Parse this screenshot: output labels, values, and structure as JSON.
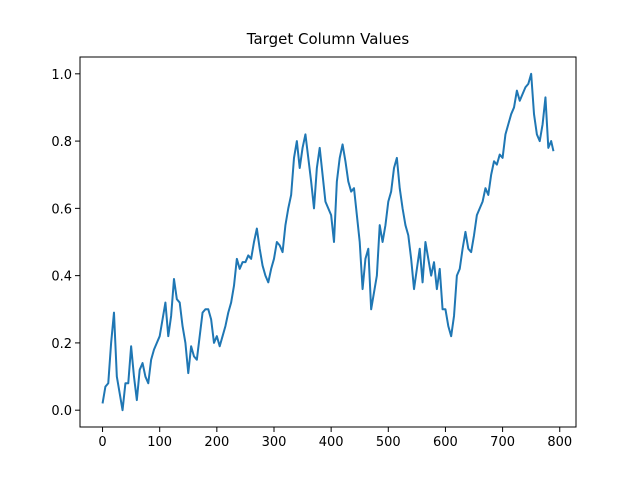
{
  "chart_data": {
    "type": "line",
    "title": "Target Column Values",
    "x": [
      0,
      5,
      10,
      15,
      20,
      25,
      30,
      35,
      40,
      45,
      50,
      55,
      60,
      65,
      70,
      75,
      80,
      85,
      90,
      95,
      100,
      105,
      110,
      115,
      120,
      125,
      130,
      135,
      140,
      145,
      150,
      155,
      160,
      165,
      170,
      175,
      180,
      185,
      190,
      195,
      200,
      205,
      210,
      215,
      220,
      225,
      230,
      235,
      240,
      245,
      250,
      255,
      260,
      265,
      270,
      275,
      280,
      285,
      290,
      295,
      300,
      305,
      310,
      315,
      320,
      325,
      330,
      335,
      340,
      345,
      350,
      355,
      360,
      365,
      370,
      375,
      380,
      385,
      390,
      395,
      400,
      405,
      410,
      415,
      420,
      425,
      430,
      435,
      440,
      445,
      450,
      455,
      460,
      465,
      470,
      475,
      480,
      485,
      490,
      495,
      500,
      505,
      510,
      515,
      520,
      525,
      530,
      535,
      540,
      545,
      550,
      555,
      560,
      565,
      570,
      575,
      580,
      585,
      590,
      595,
      600,
      605,
      610,
      615,
      620,
      625,
      630,
      635,
      640,
      645,
      650,
      655,
      660,
      665,
      670,
      675,
      680,
      685,
      690,
      695,
      700,
      705,
      710,
      715,
      720,
      725,
      730,
      735,
      740,
      745,
      750,
      755,
      760,
      765,
      770,
      775,
      780,
      785,
      789
    ],
    "series": [
      {
        "color": "#1f77b4",
        "values": [
          0.02,
          0.07,
          0.08,
          0.2,
          0.29,
          0.1,
          0.05,
          0.0,
          0.08,
          0.08,
          0.19,
          0.1,
          0.03,
          0.12,
          0.14,
          0.1,
          0.08,
          0.15,
          0.18,
          0.2,
          0.22,
          0.27,
          0.32,
          0.22,
          0.28,
          0.39,
          0.33,
          0.32,
          0.25,
          0.2,
          0.11,
          0.19,
          0.16,
          0.15,
          0.22,
          0.29,
          0.3,
          0.3,
          0.27,
          0.2,
          0.22,
          0.19,
          0.22,
          0.25,
          0.29,
          0.32,
          0.37,
          0.45,
          0.42,
          0.44,
          0.44,
          0.46,
          0.45,
          0.5,
          0.54,
          0.48,
          0.43,
          0.4,
          0.38,
          0.42,
          0.45,
          0.5,
          0.49,
          0.47,
          0.55,
          0.6,
          0.64,
          0.75,
          0.8,
          0.72,
          0.78,
          0.82,
          0.75,
          0.68,
          0.6,
          0.72,
          0.78,
          0.7,
          0.62,
          0.6,
          0.58,
          0.5,
          0.68,
          0.75,
          0.79,
          0.74,
          0.68,
          0.65,
          0.66,
          0.58,
          0.5,
          0.36,
          0.45,
          0.48,
          0.3,
          0.35,
          0.4,
          0.55,
          0.5,
          0.55,
          0.62,
          0.65,
          0.72,
          0.75,
          0.66,
          0.6,
          0.55,
          0.52,
          0.45,
          0.36,
          0.42,
          0.48,
          0.38,
          0.5,
          0.45,
          0.4,
          0.44,
          0.36,
          0.42,
          0.3,
          0.3,
          0.25,
          0.22,
          0.28,
          0.4,
          0.42,
          0.48,
          0.53,
          0.48,
          0.47,
          0.52,
          0.58,
          0.6,
          0.62,
          0.66,
          0.64,
          0.7,
          0.74,
          0.73,
          0.76,
          0.75,
          0.82,
          0.85,
          0.88,
          0.9,
          0.95,
          0.92,
          0.94,
          0.96,
          0.97,
          1.0,
          0.88,
          0.82,
          0.8,
          0.85,
          0.93,
          0.78,
          0.8,
          0.77
        ]
      }
    ],
    "xlim": [
      -39.45,
      828.45
    ],
    "ylim": [
      -0.05,
      1.05
    ],
    "xticks": [
      0,
      100,
      200,
      300,
      400,
      500,
      600,
      700,
      800
    ],
    "yticks": [
      {
        "value": 0,
        "label": "0.0"
      },
      0.2,
      0.4,
      0.6,
      0.8,
      {
        "value": 1,
        "label": "1.0"
      }
    ],
    "grid": false
  }
}
